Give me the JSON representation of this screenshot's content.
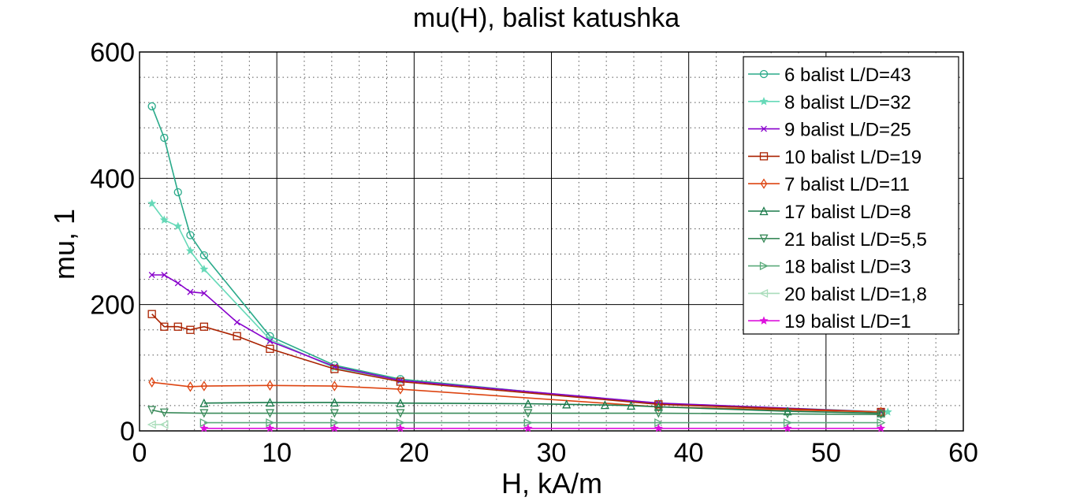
{
  "chart_data": {
    "type": "line",
    "title": "mu(H), balist katushka",
    "xlabel": "H, kA/m",
    "ylabel": "mu, 1",
    "xlim": [
      0,
      60
    ],
    "ylim": [
      0,
      600
    ],
    "xticks": [
      "0",
      "10",
      "20",
      "30",
      "40",
      "50",
      "60"
    ],
    "yticks": [
      "0",
      "200",
      "400",
      "600"
    ],
    "grid": true,
    "legend_position": "top-right",
    "series": [
      {
        "name": "6 balist L/D=43",
        "color": "#2aaa8a",
        "marker": "circle",
        "x": [
          0.9,
          1.8,
          2.8,
          3.7,
          4.7,
          9.5,
          14.2,
          19,
          37.8,
          54
        ],
        "y": [
          514,
          464,
          378,
          310,
          278,
          150,
          104,
          82,
          42,
          30
        ]
      },
      {
        "name": "8 balist  L/D=32",
        "color": "#66d9b8",
        "marker": "star",
        "x": [
          0.9,
          1.8,
          2.8,
          3.7,
          4.7,
          9.5,
          14.2,
          19,
          37.8,
          54.5
        ],
        "y": [
          360,
          334,
          324,
          285,
          256,
          145,
          100,
          80,
          44,
          30
        ]
      },
      {
        "name": "9 balist  L/D=25",
        "color": "#8800cc",
        "marker": "x",
        "x": [
          0.9,
          1.8,
          2.8,
          3.7,
          4.7,
          7.1,
          9.5,
          14.2,
          19,
          37.8,
          54
        ],
        "y": [
          247,
          247,
          234,
          220,
          218,
          172,
          142,
          102,
          80,
          44,
          30
        ]
      },
      {
        "name": "10 balist  L/D=19",
        "color": "#aa2200",
        "marker": "square",
        "x": [
          0.9,
          1.8,
          2.8,
          3.7,
          4.7,
          7.1,
          9.5,
          14.2,
          19,
          37.8,
          54
        ],
        "y": [
          185,
          165,
          165,
          160,
          165,
          150,
          130,
          98,
          78,
          42,
          30
        ]
      },
      {
        "name": "7 balist L/D=11",
        "color": "#dd4411",
        "marker": "diamond",
        "x": [
          0.9,
          3.7,
          4.7,
          9.5,
          14.2,
          19,
          37.8,
          54
        ],
        "y": [
          77,
          70,
          71,
          72,
          71,
          66,
          38,
          30
        ]
      },
      {
        "name": "17 balist  L/D=8",
        "color": "#1a7a4a",
        "marker": "triangle-up",
        "x": [
          4.7,
          9.5,
          14.2,
          19,
          28.3,
          31.1,
          33.9,
          35.8,
          37.8,
          47.2,
          54
        ],
        "y": [
          44,
          45,
          45,
          44,
          43,
          42,
          41,
          40,
          38,
          31,
          28
        ]
      },
      {
        "name": "21 balist  L/D=5,5",
        "color": "#3a8a5a",
        "marker": "triangle-down",
        "x": [
          0.9,
          1.8,
          4.7,
          9.5,
          14.2,
          19,
          28.3,
          37.8,
          47.2,
          54
        ],
        "y": [
          33,
          29,
          28,
          28,
          28,
          28,
          28,
          28,
          27,
          26
        ]
      },
      {
        "name": "18 balist  L/D=3",
        "color": "#5aaa7a",
        "marker": "triangle-right",
        "x": [
          4.7,
          9.5,
          14.2,
          19,
          28.3,
          37.8,
          47.2,
          54
        ],
        "y": [
          13,
          13,
          13,
          13,
          13,
          13,
          13,
          13
        ]
      },
      {
        "name": "20 balist  L/D=1,8",
        "color": "#aaddbb",
        "marker": "triangle-left",
        "x": [
          0.9,
          1.8
        ],
        "y": [
          10,
          10
        ]
      },
      {
        "name": "19 balist  L/D=1",
        "color": "#dd11dd",
        "marker": "star",
        "x": [
          4.7,
          9.5,
          14.2,
          19,
          28.3,
          37.8,
          47.2,
          54
        ],
        "y": [
          4,
          4,
          4,
          4,
          4,
          4,
          4,
          4
        ]
      }
    ]
  }
}
